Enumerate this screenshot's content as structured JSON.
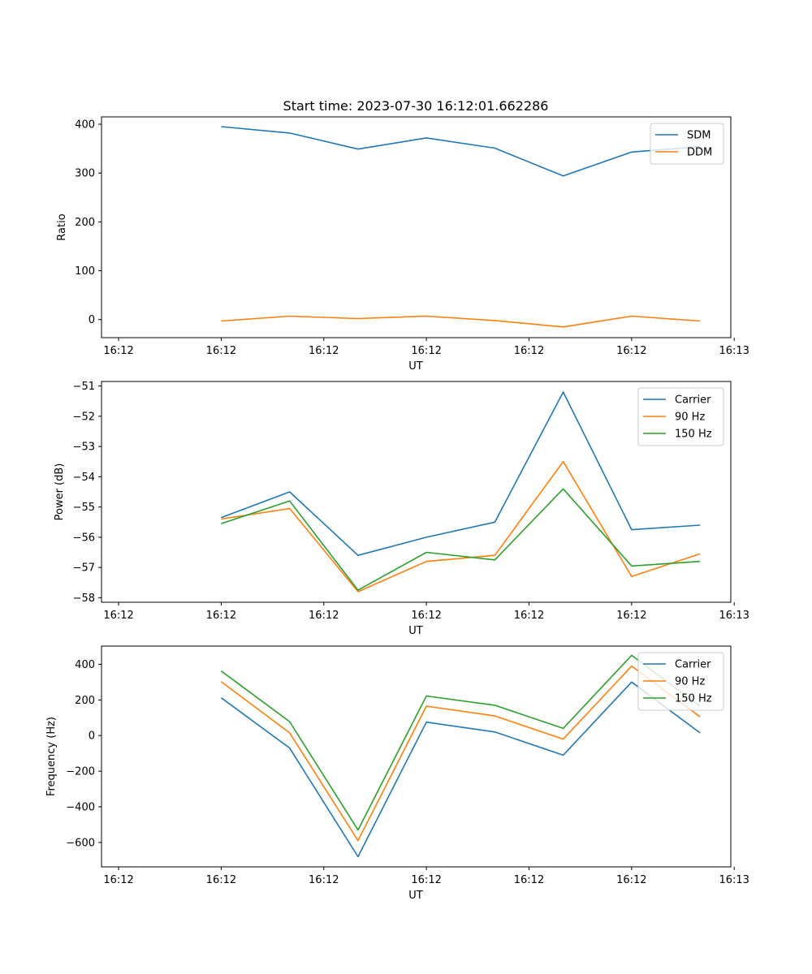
{
  "figure_title": "Start time: 2023-07-30 16:12:01.662286",
  "colors": {
    "blue": "#1f77b4",
    "orange": "#ff7f0e",
    "green": "#2ca02c"
  },
  "chart_data": [
    {
      "type": "line",
      "name": "ratio",
      "title": "Start time: 2023-07-30 16:12:01.662286",
      "xlabel": "UT",
      "ylabel": "Ratio",
      "x": [
        1,
        2,
        3,
        4,
        5,
        6,
        7,
        8
      ],
      "xlim": [
        -0.75,
        8.45
      ],
      "ylim": [
        -37,
        415
      ],
      "xticks": [
        -0.5,
        1.0,
        2.5,
        4.0,
        5.5,
        7.0,
        8.5
      ],
      "xtick_labels": [
        "16:12",
        "16:12",
        "16:12",
        "16:12",
        "16:12",
        "16:12",
        "16:13"
      ],
      "yticks": [
        0,
        100,
        200,
        300,
        400
      ],
      "ytick_labels": [
        "0",
        "100",
        "200",
        "300",
        "400"
      ],
      "legend_position": "top-right",
      "series": [
        {
          "name": "SDM",
          "color": "#1f77b4",
          "values": [
            395,
            382,
            349,
            372,
            351,
            294,
            343,
            354
          ]
        },
        {
          "name": "DDM",
          "color": "#ff7f0e",
          "values": [
            -3,
            7,
            2,
            7,
            -2,
            -15,
            7,
            -3
          ]
        }
      ]
    },
    {
      "type": "line",
      "name": "power",
      "title": "",
      "xlabel": "UT",
      "ylabel": "Power (dB)",
      "x": [
        1,
        2,
        3,
        4,
        5,
        6,
        7,
        8
      ],
      "xlim": [
        -0.75,
        8.45
      ],
      "ylim": [
        -58.15,
        -50.85
      ],
      "xticks": [
        -0.5,
        1.0,
        2.5,
        4.0,
        5.5,
        7.0,
        8.5
      ],
      "xtick_labels": [
        "16:12",
        "16:12",
        "16:12",
        "16:12",
        "16:12",
        "16:12",
        "16:13"
      ],
      "yticks": [
        -58,
        -57,
        -56,
        -55,
        -54,
        -53,
        -52,
        -51
      ],
      "ytick_labels": [
        "−58",
        "−57",
        "−56",
        "−55",
        "−54",
        "−53",
        "−52",
        "−51"
      ],
      "legend_position": "top-right",
      "series": [
        {
          "name": "Carrier",
          "color": "#1f77b4",
          "values": [
            -55.35,
            -54.5,
            -56.6,
            -56.0,
            -55.5,
            -51.2,
            -55.75,
            -55.6
          ]
        },
        {
          "name": "90 Hz",
          "color": "#ff7f0e",
          "values": [
            -55.4,
            -55.05,
            -57.8,
            -56.8,
            -56.6,
            -53.5,
            -57.3,
            -56.55
          ]
        },
        {
          "name": "150 Hz",
          "color": "#2ca02c",
          "values": [
            -55.55,
            -54.8,
            -57.75,
            -56.5,
            -56.75,
            -54.4,
            -56.95,
            -56.8
          ]
        }
      ]
    },
    {
      "type": "line",
      "name": "frequency",
      "title": "",
      "xlabel": "UT",
      "ylabel": "Frequency (Hz)",
      "x": [
        1,
        2,
        3,
        4,
        5,
        6,
        7,
        8
      ],
      "xlim": [
        -0.75,
        8.45
      ],
      "ylim": [
        -737,
        502
      ],
      "xticks": [
        -0.5,
        1.0,
        2.5,
        4.0,
        5.5,
        7.0,
        8.5
      ],
      "xtick_labels": [
        "16:12",
        "16:12",
        "16:12",
        "16:12",
        "16:12",
        "16:12",
        "16:13"
      ],
      "yticks": [
        -600,
        -400,
        -200,
        0,
        200,
        400
      ],
      "ytick_labels": [
        "−600",
        "−400",
        "−200",
        "0",
        "200",
        "400"
      ],
      "legend_position": "top-right",
      "series": [
        {
          "name": "Carrier",
          "color": "#1f77b4",
          "values": [
            212,
            -70,
            -680,
            75,
            20,
            -110,
            300,
            15
          ]
        },
        {
          "name": "90 Hz",
          "color": "#ff7f0e",
          "values": [
            302,
            15,
            -590,
            165,
            110,
            -20,
            390,
            105
          ]
        },
        {
          "name": "150 Hz",
          "color": "#2ca02c",
          "values": [
            362,
            78,
            -530,
            222,
            170,
            40,
            450,
            165
          ]
        }
      ]
    }
  ]
}
